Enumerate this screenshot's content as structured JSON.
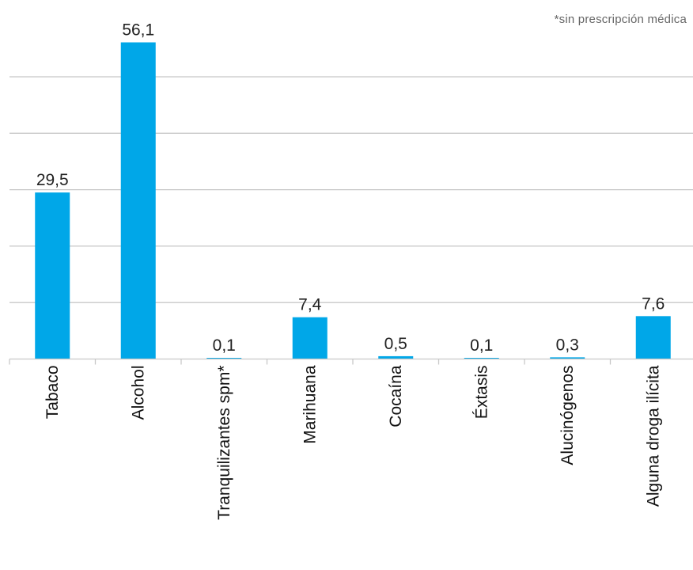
{
  "note": "*sin prescripción médica",
  "colors": {
    "bar": "#00a7e8",
    "grid": "#c8c8c8"
  },
  "chart_data": {
    "type": "bar",
    "categories": [
      "Tabaco",
      "Alcohol",
      "Tranquilizantes spm*",
      "Marihuana",
      "Cocaína",
      "Éxtasis",
      "Alucinógenos",
      "Alguna droga ilícita"
    ],
    "values": [
      29.5,
      56.1,
      0.1,
      7.4,
      0.5,
      0.1,
      0.3,
      7.6
    ],
    "data_labels": [
      "29,5",
      "56,1",
      "0,1",
      "7,4",
      "0,5",
      "0,1",
      "0,3",
      "7,6"
    ],
    "title": "",
    "xlabel": "",
    "ylabel": "",
    "ylim": [
      0,
      60
    ],
    "gridlines": [
      10,
      20,
      30,
      40,
      50
    ],
    "grid": true,
    "legend": false
  }
}
